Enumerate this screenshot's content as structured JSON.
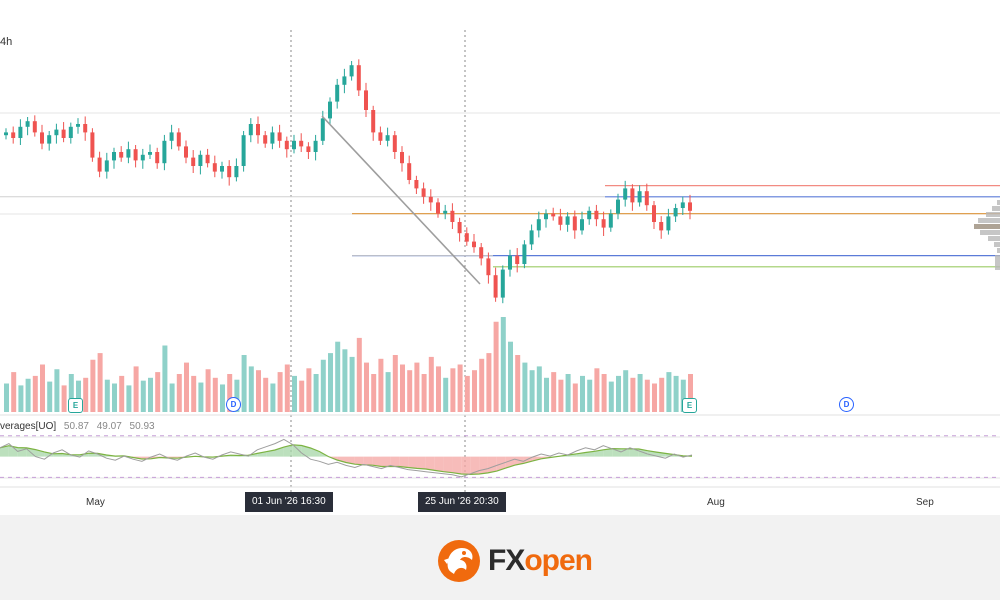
{
  "header": {
    "timeframe": "4h"
  },
  "oscillator": {
    "name": "Ultimate Oscillator / Moving Averages[UO]",
    "name_visible": "verages[UO]",
    "values": [
      "50.87",
      "49.07",
      "50.93"
    ]
  },
  "crosshair_tags": [
    {
      "label": "01 Jun '26   16:30"
    },
    {
      "label": "25 Jun '26   20:30"
    }
  ],
  "x_axis": {
    "labels": [
      "May",
      "Aug",
      "Sep"
    ]
  },
  "events": [
    {
      "type": "earnings",
      "symbol": "E"
    },
    {
      "type": "dividend",
      "symbol": "D"
    },
    {
      "type": "earnings",
      "symbol": "E"
    },
    {
      "type": "dividend",
      "symbol": "D"
    }
  ],
  "brand": {
    "part1": "FX",
    "part2": "open"
  },
  "colors": {
    "up": "#26a69a",
    "down": "#ef5350",
    "up_volume": "#8fd1c9",
    "down_volume": "#f6a7a4",
    "trendline": "#9e9e9e",
    "level_red": "#f28b82",
    "level_blue": "#5b7bd8",
    "level_orange": "#e0a050",
    "level_green": "#9ccc65",
    "brand_orange": "#f06a0e",
    "brand_dark": "#2b2b2b"
  },
  "chart_data": {
    "type": "candlestick",
    "price_series": [
      {
        "o": 0.46,
        "c": 0.47
      },
      {
        "o": 0.47,
        "c": 0.45
      },
      {
        "o": 0.45,
        "c": 0.49
      },
      {
        "o": 0.49,
        "c": 0.51
      },
      {
        "o": 0.51,
        "c": 0.47
      },
      {
        "o": 0.47,
        "c": 0.43
      },
      {
        "o": 0.43,
        "c": 0.46
      },
      {
        "o": 0.46,
        "c": 0.48
      },
      {
        "o": 0.48,
        "c": 0.45
      },
      {
        "o": 0.45,
        "c": 0.49
      },
      {
        "o": 0.49,
        "c": 0.5
      },
      {
        "o": 0.5,
        "c": 0.47
      },
      {
        "o": 0.47,
        "c": 0.38
      },
      {
        "o": 0.38,
        "c": 0.33
      },
      {
        "o": 0.33,
        "c": 0.37
      },
      {
        "o": 0.37,
        "c": 0.4
      },
      {
        "o": 0.4,
        "c": 0.38
      },
      {
        "o": 0.38,
        "c": 0.41
      },
      {
        "o": 0.41,
        "c": 0.37
      },
      {
        "o": 0.37,
        "c": 0.39
      },
      {
        "o": 0.39,
        "c": 0.4
      },
      {
        "o": 0.4,
        "c": 0.36
      },
      {
        "o": 0.36,
        "c": 0.44
      },
      {
        "o": 0.44,
        "c": 0.47
      },
      {
        "o": 0.47,
        "c": 0.42
      },
      {
        "o": 0.42,
        "c": 0.38
      },
      {
        "o": 0.38,
        "c": 0.35
      },
      {
        "o": 0.35,
        "c": 0.39
      },
      {
        "o": 0.39,
        "c": 0.36
      },
      {
        "o": 0.36,
        "c": 0.33
      },
      {
        "o": 0.33,
        "c": 0.35
      },
      {
        "o": 0.35,
        "c": 0.31
      },
      {
        "o": 0.31,
        "c": 0.35
      },
      {
        "o": 0.35,
        "c": 0.46
      },
      {
        "o": 0.46,
        "c": 0.5
      },
      {
        "o": 0.5,
        "c": 0.46
      },
      {
        "o": 0.46,
        "c": 0.43
      },
      {
        "o": 0.43,
        "c": 0.47
      },
      {
        "o": 0.47,
        "c": 0.44
      },
      {
        "o": 0.44,
        "c": 0.41
      },
      {
        "o": 0.41,
        "c": 0.44
      },
      {
        "o": 0.44,
        "c": 0.42
      },
      {
        "o": 0.42,
        "c": 0.4
      },
      {
        "o": 0.4,
        "c": 0.44
      },
      {
        "o": 0.44,
        "c": 0.52
      },
      {
        "o": 0.52,
        "c": 0.58
      },
      {
        "o": 0.58,
        "c": 0.64
      },
      {
        "o": 0.64,
        "c": 0.67
      },
      {
        "o": 0.67,
        "c": 0.71
      },
      {
        "o": 0.71,
        "c": 0.62
      },
      {
        "o": 0.62,
        "c": 0.55
      },
      {
        "o": 0.55,
        "c": 0.47
      },
      {
        "o": 0.47,
        "c": 0.44
      },
      {
        "o": 0.44,
        "c": 0.46
      },
      {
        "o": 0.46,
        "c": 0.4
      },
      {
        "o": 0.4,
        "c": 0.36
      },
      {
        "o": 0.36,
        "c": 0.3
      },
      {
        "o": 0.3,
        "c": 0.27
      },
      {
        "o": 0.27,
        "c": 0.24
      },
      {
        "o": 0.24,
        "c": 0.22
      },
      {
        "o": 0.22,
        "c": 0.18
      },
      {
        "o": 0.18,
        "c": 0.19
      },
      {
        "o": 0.19,
        "c": 0.15
      },
      {
        "o": 0.15,
        "c": 0.11
      },
      {
        "o": 0.11,
        "c": 0.08
      },
      {
        "o": 0.08,
        "c": 0.06
      },
      {
        "o": 0.06,
        "c": 0.02
      },
      {
        "o": 0.02,
        "c": -0.04
      },
      {
        "o": -0.04,
        "c": -0.12
      },
      {
        "o": -0.12,
        "c": -0.02
      },
      {
        "o": -0.02,
        "c": 0.03
      },
      {
        "o": 0.03,
        "c": 0.0
      },
      {
        "o": 0.0,
        "c": 0.07
      },
      {
        "o": 0.07,
        "c": 0.12
      },
      {
        "o": 0.12,
        "c": 0.16
      },
      {
        "o": 0.16,
        "c": 0.18
      },
      {
        "o": 0.18,
        "c": 0.17
      },
      {
        "o": 0.17,
        "c": 0.14
      },
      {
        "o": 0.14,
        "c": 0.17
      },
      {
        "o": 0.17,
        "c": 0.12
      },
      {
        "o": 0.12,
        "c": 0.16
      },
      {
        "o": 0.16,
        "c": 0.19
      },
      {
        "o": 0.19,
        "c": 0.16
      },
      {
        "o": 0.16,
        "c": 0.13
      },
      {
        "o": 0.13,
        "c": 0.18
      },
      {
        "o": 0.18,
        "c": 0.23
      },
      {
        "o": 0.23,
        "c": 0.27
      },
      {
        "o": 0.27,
        "c": 0.22
      },
      {
        "o": 0.22,
        "c": 0.26
      },
      {
        "o": 0.26,
        "c": 0.21
      },
      {
        "o": 0.21,
        "c": 0.15
      },
      {
        "o": 0.15,
        "c": 0.12
      },
      {
        "o": 0.12,
        "c": 0.17
      },
      {
        "o": 0.17,
        "c": 0.2
      },
      {
        "o": 0.2,
        "c": 0.22
      },
      {
        "o": 0.22,
        "c": 0.19
      }
    ],
    "volume": [
      0.3,
      0.42,
      0.28,
      0.35,
      0.38,
      0.5,
      0.32,
      0.45,
      0.28,
      0.4,
      0.33,
      0.36,
      0.55,
      0.62,
      0.34,
      0.3,
      0.38,
      0.28,
      0.48,
      0.33,
      0.36,
      0.42,
      0.7,
      0.3,
      0.4,
      0.52,
      0.38,
      0.31,
      0.45,
      0.36,
      0.29,
      0.4,
      0.34,
      0.6,
      0.48,
      0.44,
      0.36,
      0.3,
      0.42,
      0.5,
      0.38,
      0.33,
      0.46,
      0.4,
      0.55,
      0.62,
      0.74,
      0.66,
      0.58,
      0.78,
      0.52,
      0.4,
      0.56,
      0.42,
      0.6,
      0.5,
      0.44,
      0.52,
      0.4,
      0.58,
      0.48,
      0.36,
      0.46,
      0.5,
      0.38,
      0.44,
      0.56,
      0.62,
      0.95,
      1.0,
      0.74,
      0.6,
      0.52,
      0.44,
      0.48,
      0.36,
      0.42,
      0.34,
      0.4,
      0.3,
      0.38,
      0.34,
      0.46,
      0.4,
      0.32,
      0.38,
      0.44,
      0.36,
      0.4,
      0.34,
      0.3,
      0.36,
      0.42,
      0.38,
      0.34,
      0.4
    ],
    "oscillator": [
      0.62,
      0.7,
      0.55,
      0.6,
      0.45,
      0.4,
      0.52,
      0.58,
      0.48,
      0.44,
      0.56,
      0.5,
      0.42,
      0.38,
      0.46,
      0.4,
      0.36,
      0.44,
      0.5,
      0.42,
      0.38,
      0.46,
      0.52,
      0.44,
      0.4,
      0.48,
      0.54,
      0.5,
      0.46,
      0.58,
      0.64,
      0.7,
      0.78,
      0.68,
      0.52,
      0.4,
      0.36,
      0.3,
      0.34,
      0.28,
      0.24,
      0.3,
      0.26,
      0.22,
      0.28,
      0.24,
      0.2,
      0.18,
      0.16,
      0.14,
      0.12,
      0.1,
      0.06,
      0.12,
      0.18,
      0.22,
      0.28,
      0.34,
      0.4,
      0.36,
      0.44,
      0.5,
      0.46,
      0.52,
      0.48,
      0.56,
      0.62,
      0.58,
      0.66,
      0.6,
      0.54,
      0.62,
      0.56,
      0.5,
      0.46,
      0.42,
      0.5,
      0.44,
      0.48
    ],
    "levels": [
      {
        "name": "red",
        "value": 0.28
      },
      {
        "name": "blue-top",
        "value": 0.24
      },
      {
        "name": "orange",
        "value": 0.18
      },
      {
        "name": "blue-bottom",
        "value": 0.03
      },
      {
        "name": "green",
        "value": -0.01
      }
    ],
    "xlabel": "",
    "ylabel": ""
  }
}
